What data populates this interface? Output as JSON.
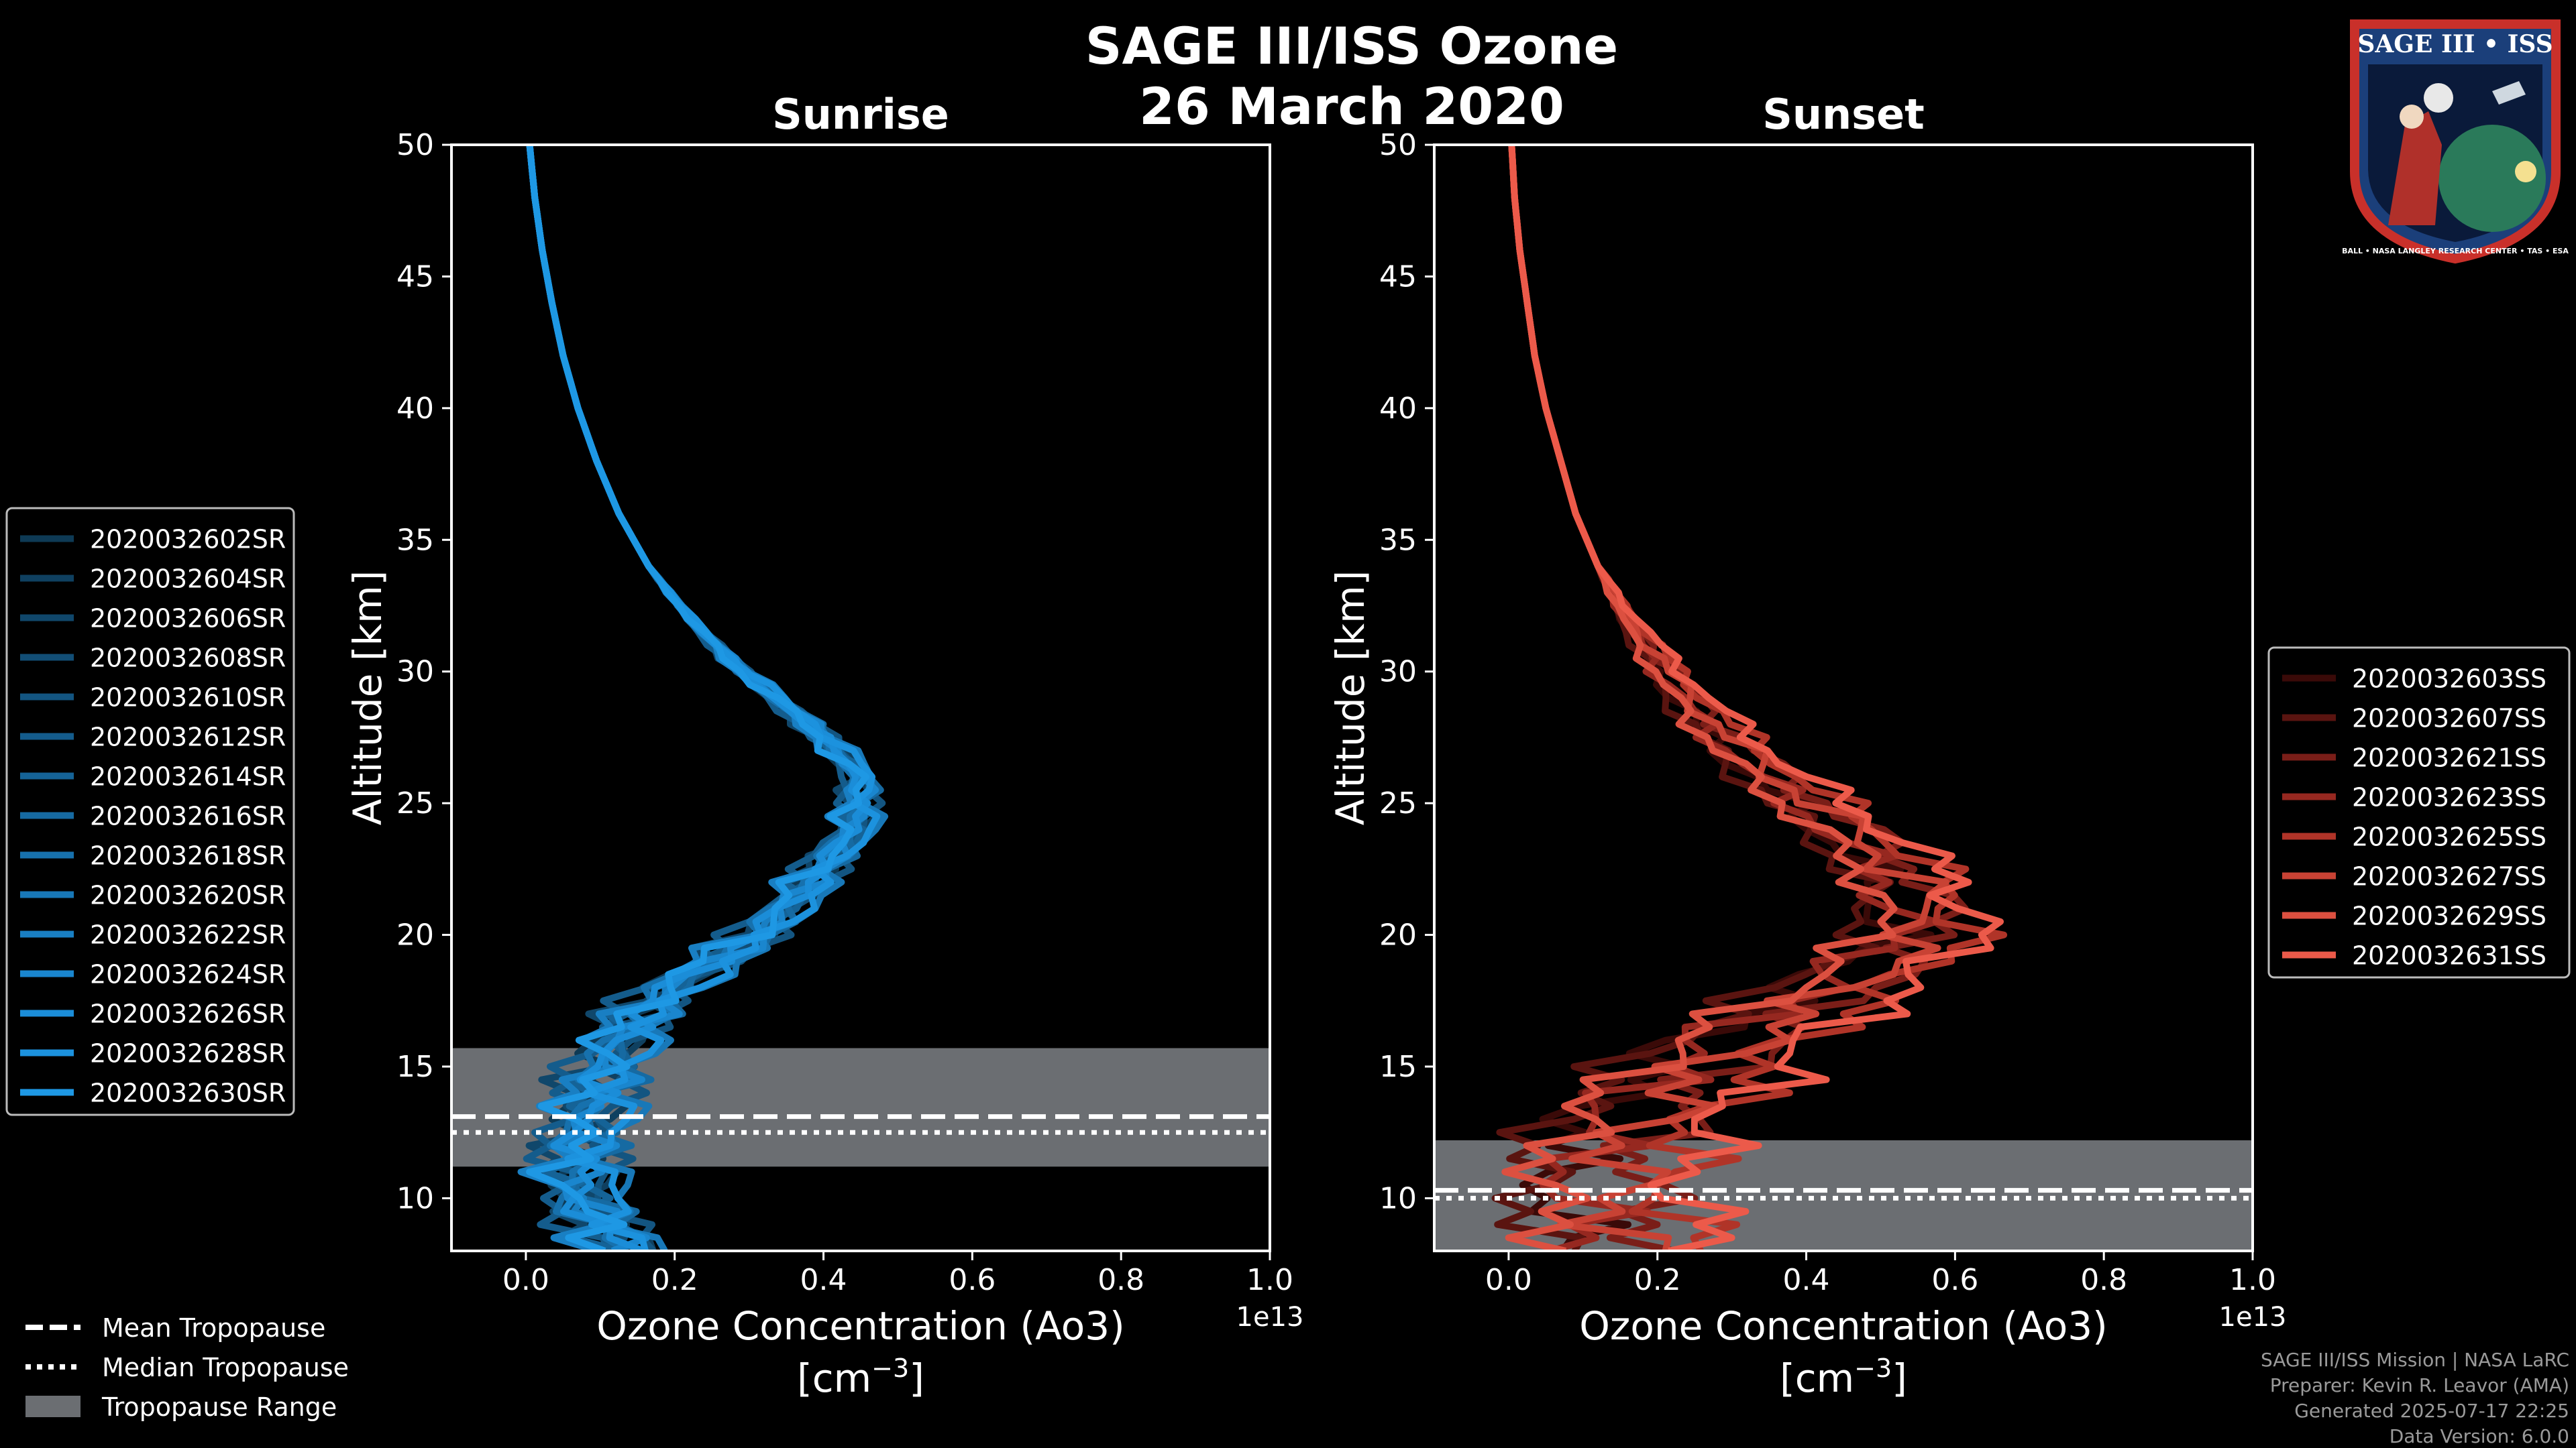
{
  "title": {
    "line1": "SAGE III/ISS Ozone",
    "line2": "26 March 2020"
  },
  "colors": {
    "background": "#000000",
    "sunrise_base": "#1a8fd8",
    "sunset_base": "#ec5a4a",
    "tropo_band": "#6b6e72",
    "frame": "#ffffff"
  },
  "chart_data": [
    {
      "type": "line",
      "panel": "sunrise",
      "title": "Sunrise",
      "xlabel": "Ozone Concentration (Ao3)",
      "xunit_prefix": "[cm",
      "xunit_exp": "−3",
      "xunit_suffix": "]",
      "offset_label": "1e13",
      "ylabel": "Altitude [km]",
      "xlim": [
        -0.1,
        1.0
      ],
      "ylim": [
        8,
        50
      ],
      "xticks": [
        "0.0",
        "0.2",
        "0.4",
        "0.6",
        "0.8",
        "1.0"
      ],
      "yticks": [
        "10",
        "15",
        "20",
        "25",
        "30",
        "35",
        "40",
        "45",
        "50"
      ],
      "altitudes": [
        8,
        10,
        12,
        14,
        16,
        18,
        20,
        22,
        24,
        26,
        28,
        30,
        32,
        34,
        36,
        38,
        40,
        42,
        44,
        46,
        48,
        50
      ],
      "mean_profile": [
        0.13,
        0.07,
        0.07,
        0.09,
        0.12,
        0.19,
        0.31,
        0.38,
        0.44,
        0.45,
        0.38,
        0.29,
        0.22,
        0.165,
        0.125,
        0.095,
        0.07,
        0.05,
        0.035,
        0.022,
        0.012,
        0.005
      ],
      "tropopause": {
        "range": [
          11.2,
          15.7
        ],
        "mean": 13.1,
        "median": 12.5
      },
      "series": [
        {
          "name": "2020032602SR",
          "color": "#0e3a55",
          "dx": -0.01,
          "amp": 0.05
        },
        {
          "name": "2020032604SR",
          "color": "#0f4060",
          "dx": 0.02,
          "amp": 0.04
        },
        {
          "name": "2020032606SR",
          "color": "#10476b",
          "dx": -0.02,
          "amp": 0.06
        },
        {
          "name": "2020032608SR",
          "color": "#124e76",
          "dx": 0.01,
          "amp": 0.05
        },
        {
          "name": "2020032610SR",
          "color": "#135581",
          "dx": 0.03,
          "amp": 0.04
        },
        {
          "name": "2020032612SR",
          "color": "#145c8c",
          "dx": -0.03,
          "amp": 0.05
        },
        {
          "name": "2020032614SR",
          "color": "#156397",
          "dx": 0.0,
          "amp": 0.06
        },
        {
          "name": "2020032616SR",
          "color": "#166aa2",
          "dx": 0.02,
          "amp": 0.05
        },
        {
          "name": "2020032618SR",
          "color": "#1771ad",
          "dx": -0.01,
          "amp": 0.04
        },
        {
          "name": "2020032620SR",
          "color": "#1878b8",
          "dx": 0.04,
          "amp": 0.05
        },
        {
          "name": "2020032622SR",
          "color": "#197fc3",
          "dx": -0.02,
          "amp": 0.06
        },
        {
          "name": "2020032624SR",
          "color": "#1a86ce",
          "dx": 0.01,
          "amp": 0.05
        },
        {
          "name": "2020032626SR",
          "color": "#1b8dd8",
          "dx": 0.0,
          "amp": 0.04
        },
        {
          "name": "2020032628SR",
          "color": "#1c92de",
          "dx": 0.03,
          "amp": 0.05
        },
        {
          "name": "2020032630SR",
          "color": "#1e98e4",
          "dx": -0.01,
          "amp": 0.06
        }
      ]
    },
    {
      "type": "line",
      "panel": "sunset",
      "title": "Sunset",
      "xlabel": "Ozone Concentration (Ao3)",
      "xunit_prefix": "[cm",
      "xunit_exp": "−3",
      "xunit_suffix": "]",
      "offset_label": "1e13",
      "ylabel": "Altitude [km]",
      "xlim": [
        -0.1,
        1.0
      ],
      "ylim": [
        8,
        50
      ],
      "xticks": [
        "0.0",
        "0.2",
        "0.4",
        "0.6",
        "0.8",
        "1.0"
      ],
      "yticks": [
        "10",
        "15",
        "20",
        "25",
        "30",
        "35",
        "40",
        "45",
        "50"
      ],
      "altitudes": [
        8,
        10,
        12,
        14,
        16,
        18,
        20,
        22,
        24,
        26,
        28,
        30,
        32,
        34,
        36,
        38,
        40,
        42,
        44,
        46,
        48,
        50
      ],
      "mean_profile": [
        0.15,
        0.12,
        0.13,
        0.2,
        0.3,
        0.44,
        0.55,
        0.53,
        0.45,
        0.35,
        0.27,
        0.21,
        0.16,
        0.12,
        0.09,
        0.07,
        0.05,
        0.035,
        0.025,
        0.015,
        0.008,
        0.004
      ],
      "tropopause": {
        "range": [
          8,
          12.2
        ],
        "mean": 10.3,
        "median": 10.0
      },
      "series": [
        {
          "name": "2020032603SS",
          "color": "#3a0a08",
          "dx": -0.05,
          "amp": 0.09
        },
        {
          "name": "2020032607SS",
          "color": "#5a1410",
          "dx": -0.08,
          "amp": 0.08
        },
        {
          "name": "2020032621SS",
          "color": "#7a1e18",
          "dx": 0.05,
          "amp": 0.09
        },
        {
          "name": "2020032623SS",
          "color": "#962820",
          "dx": -0.03,
          "amp": 0.1
        },
        {
          "name": "2020032625SS",
          "color": "#b03428",
          "dx": 0.08,
          "amp": 0.09
        },
        {
          "name": "2020032627SS",
          "color": "#c84234",
          "dx": 0.02,
          "amp": 0.1
        },
        {
          "name": "2020032629SS",
          "color": "#dc5040",
          "dx": -0.06,
          "amp": 0.08
        },
        {
          "name": "2020032631SS",
          "color": "#ec5a4a",
          "dx": 0.1,
          "amp": 0.09
        }
      ]
    }
  ],
  "tropo_legend": [
    {
      "label": "Mean Tropopause",
      "style": "dashed"
    },
    {
      "label": "Median Tropopause",
      "style": "dotted"
    },
    {
      "label": "Tropopause Range",
      "style": "patch"
    }
  ],
  "footer": [
    "SAGE III/ISS Mission | NASA LaRC",
    "Preparer: Kevin R. Leavor (AMA)",
    "Generated 2025-07-17 22:25",
    "Data Version: 6.0.0"
  ],
  "logo": {
    "top_text": "SAGE III • ISS",
    "ring_text": "BALL • NASA LANGLEY RESEARCH CENTER • TAS • ESA"
  }
}
